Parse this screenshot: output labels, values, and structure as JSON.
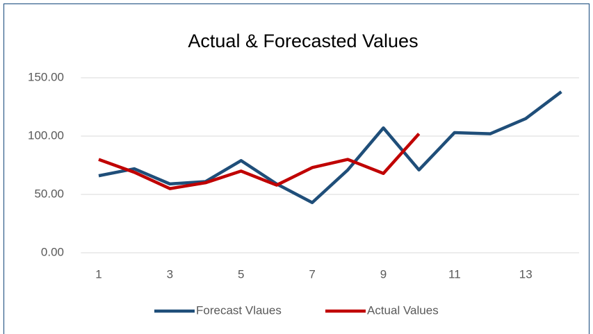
{
  "chart_data": {
    "type": "line",
    "title": "Actual & Forecasted Values",
    "categories": [
      "1",
      null,
      "3",
      null,
      "5",
      null,
      "7",
      null,
      "9",
      null,
      "11",
      null,
      "13",
      null
    ],
    "series": [
      {
        "name": "Forecast Vlaues",
        "color": "#1f4e79",
        "values": [
          66,
          72,
          59,
          61,
          79,
          59,
          43,
          71,
          107,
          71,
          103,
          102,
          115,
          138
        ]
      },
      {
        "name": "Actual Values",
        "color": "#c00000",
        "values": [
          80,
          69,
          55,
          60,
          70,
          58,
          73,
          80,
          68,
          102,
          null,
          null,
          null,
          null
        ]
      }
    ],
    "ylim": [
      0,
      150
    ],
    "yticks": [
      {
        "value": 0,
        "label": "0.00"
      },
      {
        "value": 50,
        "label": "50.00"
      },
      {
        "value": 100,
        "label": "100.00"
      },
      {
        "value": 150,
        "label": "150.00"
      }
    ],
    "grid": true,
    "legend": "bottom"
  }
}
